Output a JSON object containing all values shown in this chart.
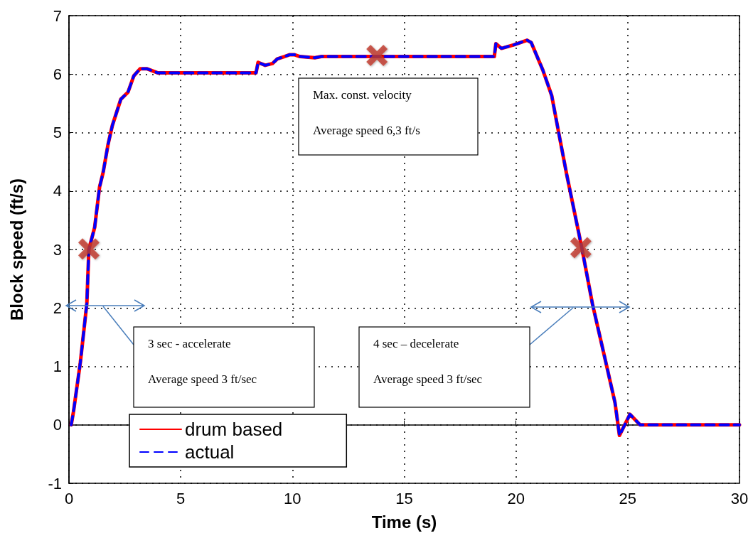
{
  "chart_data": {
    "type": "line",
    "xlabel": "Time (s)",
    "ylabel": "Block speed (ft/s)",
    "xlim": [
      0,
      30
    ],
    "ylim": [
      -1,
      7
    ],
    "xticks": [
      0,
      5,
      10,
      15,
      20,
      25,
      30
    ],
    "yticks": [
      -1,
      0,
      1,
      2,
      3,
      4,
      5,
      6,
      7
    ],
    "grid": true,
    "legend": "bottom left",
    "marker": "none",
    "series": [
      {
        "name": "drum based",
        "color": "#ff0000",
        "line_style": "solid",
        "x": [
          0.1,
          0.2,
          0.51,
          0.8,
          0.89,
          1.15,
          1.37,
          1.53,
          1.75,
          1.94,
          2.32,
          2.64,
          2.9,
          3.18,
          3.5,
          3.98,
          8.37,
          8.46,
          8.78,
          9.1,
          9.32,
          9.64,
          9.86,
          10.1,
          10.33,
          11.0,
          11.3,
          19.03,
          19.1,
          19.35,
          19.9,
          20.5,
          20.68,
          21.2,
          21.6,
          21.9,
          22.27,
          22.81,
          22.97,
          23.42,
          23.99,
          24.43,
          24.63,
          25.1,
          25.55,
          30
        ],
        "values": [
          0,
          0.22,
          1.07,
          2.08,
          3.0,
          3.38,
          4.07,
          4.32,
          4.8,
          5.12,
          5.57,
          5.69,
          5.97,
          6.09,
          6.09,
          6.02,
          6.02,
          6.2,
          6.15,
          6.18,
          6.26,
          6.3,
          6.33,
          6.33,
          6.3,
          6.28,
          6.3,
          6.3,
          6.52,
          6.44,
          6.5,
          6.58,
          6.54,
          6.07,
          5.63,
          5.02,
          4.28,
          3.28,
          2.98,
          2.07,
          1.12,
          0.38,
          -0.18,
          0.18,
          0,
          0
        ]
      },
      {
        "name": "actual",
        "color": "#0000ff",
        "line_style": "dashed",
        "x": [
          0.1,
          0.2,
          0.51,
          0.8,
          0.89,
          1.15,
          1.37,
          1.53,
          1.75,
          1.94,
          2.32,
          2.64,
          2.9,
          3.18,
          3.5,
          3.98,
          8.37,
          8.46,
          8.78,
          9.1,
          9.32,
          9.64,
          9.86,
          10.1,
          10.33,
          11.0,
          11.3,
          19.03,
          19.1,
          19.35,
          19.9,
          20.5,
          20.68,
          21.2,
          21.6,
          21.9,
          22.27,
          22.81,
          22.97,
          23.42,
          23.99,
          24.43,
          24.63,
          25.1,
          25.55,
          30
        ],
        "values": [
          0,
          0.22,
          1.07,
          2.08,
          3.0,
          3.38,
          4.07,
          4.32,
          4.8,
          5.12,
          5.57,
          5.69,
          5.97,
          6.09,
          6.09,
          6.02,
          6.02,
          6.2,
          6.15,
          6.18,
          6.26,
          6.3,
          6.33,
          6.33,
          6.3,
          6.28,
          6.3,
          6.3,
          6.52,
          6.44,
          6.5,
          6.58,
          6.54,
          6.07,
          5.63,
          5.02,
          4.28,
          3.28,
          2.98,
          2.07,
          1.12,
          0.38,
          -0.18,
          0.18,
          0,
          0
        ]
      },
      {
        "type": "scatter",
        "marker": "cross",
        "color": "#c0392b",
        "x": [
          0.89,
          13.78,
          22.9
        ],
        "values": [
          3.01,
          6.32,
          3.03
        ]
      }
    ],
    "annotations": [
      "3 sec - accelerate",
      "Average speed 3 ft/sec",
      "4 sec – decelerate",
      "Average speed 3 ft/sec",
      "Max. const. velocity",
      "Average speed 6,3 ft/s"
    ]
  }
}
